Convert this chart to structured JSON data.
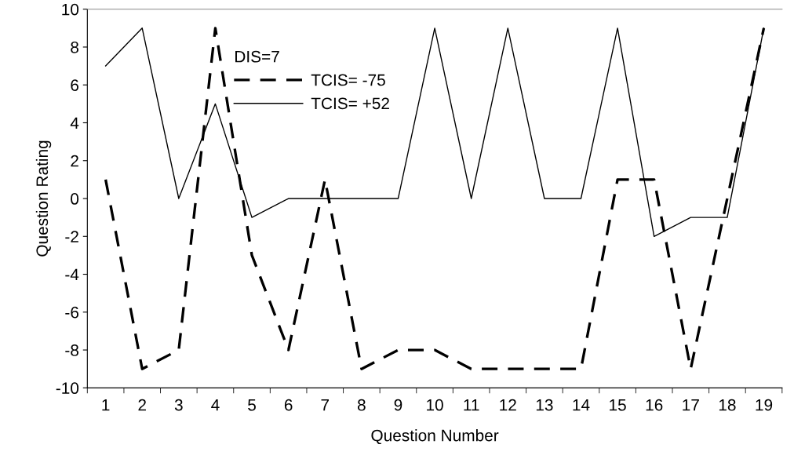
{
  "chart_data": {
    "type": "line",
    "xlabel": "Question Number",
    "ylabel": "Question Rating",
    "legend_title": "DIS=7",
    "categories": [
      "1",
      "2",
      "3",
      "4",
      "5",
      "6",
      "7",
      "8",
      "9",
      "10",
      "11",
      "12",
      "13",
      "14",
      "15",
      "16",
      "17",
      "18",
      "19"
    ],
    "series": [
      {
        "name": "TCIS= -75",
        "color": "#000000",
        "line_style": "dashed",
        "values": [
          1,
          -9,
          -8,
          9,
          -3,
          -8,
          1,
          -9,
          -8,
          -8,
          -9,
          -9,
          -9,
          -9,
          1,
          1,
          -9,
          0,
          9
        ]
      },
      {
        "name": "TCIS= +52",
        "color": "#000000",
        "line_style": "solid",
        "values": [
          7,
          9,
          0,
          5,
          -1,
          0,
          0,
          0,
          0,
          9,
          0,
          9,
          0,
          0,
          9,
          -2,
          -1,
          -1,
          9
        ]
      }
    ],
    "ylim": [
      -10,
      10
    ],
    "yticks": [
      -10,
      -8,
      -6,
      -4,
      -2,
      0,
      2,
      4,
      6,
      8,
      10
    ],
    "grid": false,
    "legend": "top left",
    "marker": "none"
  }
}
